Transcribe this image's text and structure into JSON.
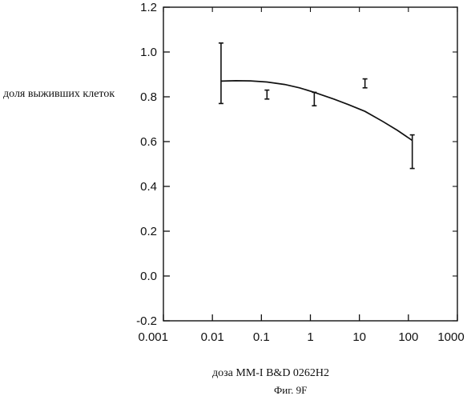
{
  "chart_data": {
    "type": "line",
    "title": "",
    "xlabel": "доза MM-I B&D 0262H2",
    "ylabel": "доля выживших клеток",
    "caption": "Фиг. 9F",
    "x_scale": "log",
    "xlim": [
      0.001,
      1000
    ],
    "ylim": [
      -0.2,
      1.2
    ],
    "x_ticks": [
      0.001,
      0.01,
      0.1,
      1,
      10,
      100,
      1000
    ],
    "x_tick_labels": [
      "0.001",
      "0.01",
      "0.1",
      "1",
      "10",
      "100",
      "1000"
    ],
    "y_ticks": [
      -0.2,
      0.0,
      0.2,
      0.4,
      0.6,
      0.8,
      1.0,
      1.2
    ],
    "y_tick_labels": [
      "-0.2",
      "0.0",
      "0.2",
      "0.4",
      "0.6",
      "0.8",
      "1.0",
      "1.2"
    ],
    "grid": false,
    "points": [
      {
        "x": 0.015,
        "y": 0.87,
        "err_low": 0.77,
        "err_high": 1.04
      },
      {
        "x": 0.13,
        "y": 0.81,
        "err_low": 0.79,
        "err_high": 0.83
      },
      {
        "x": 1.2,
        "y": 0.79,
        "err_low": 0.76,
        "err_high": 0.82
      },
      {
        "x": 13,
        "y": 0.86,
        "err_low": 0.84,
        "err_high": 0.88
      },
      {
        "x": 120,
        "y": 0.61,
        "err_low": 0.48,
        "err_high": 0.63
      }
    ],
    "fit_curve": {
      "x": [
        0.015,
        0.03,
        0.06,
        0.13,
        0.3,
        0.6,
        1.2,
        3,
        6,
        13,
        30,
        60,
        120
      ],
      "y": [
        0.87,
        0.872,
        0.871,
        0.866,
        0.855,
        0.84,
        0.82,
        0.79,
        0.765,
        0.735,
        0.69,
        0.65,
        0.605
      ]
    },
    "colors": {
      "ink": "#111111",
      "background": "#ffffff"
    }
  }
}
